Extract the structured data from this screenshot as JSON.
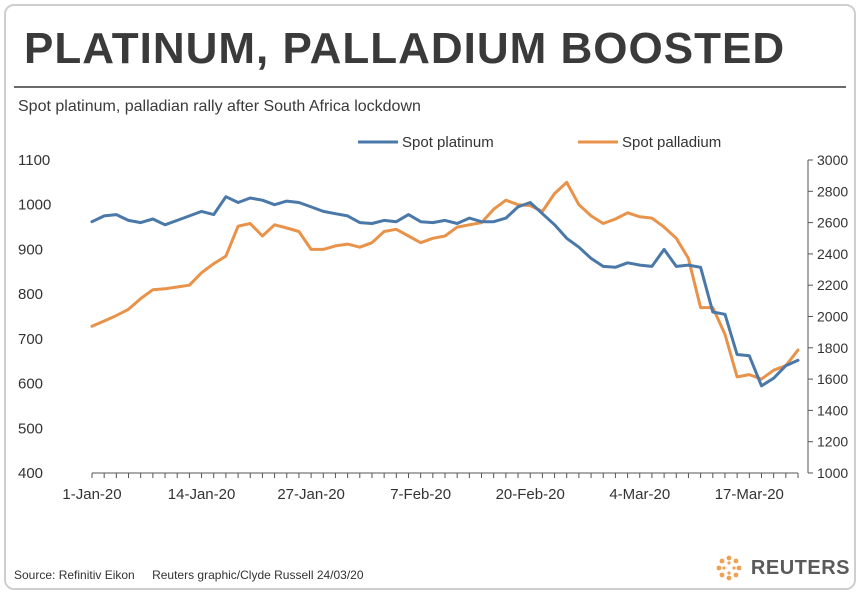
{
  "header": {
    "title": "PLATINUM, PALLADIUM BOOSTED",
    "subtitle": "Spot platinum, palladian rally after South Africa lockdown"
  },
  "footer": {
    "source": "Source: Refinitiv Eikon",
    "credit": "Reuters graphic/Clyde Russell 24/03/20",
    "brand": "REUTERS"
  },
  "colors": {
    "platinum": "#4a78a8",
    "palladium": "#e8924a",
    "brand_orange": "#f0a050"
  },
  "chart_data": {
    "type": "line",
    "x": [
      "1-Jan-20",
      "2-Jan-20",
      "3-Jan-20",
      "6-Jan-20",
      "7-Jan-20",
      "8-Jan-20",
      "9-Jan-20",
      "10-Jan-20",
      "13-Jan-20",
      "14-Jan-20",
      "15-Jan-20",
      "16-Jan-20",
      "17-Jan-20",
      "20-Jan-20",
      "21-Jan-20",
      "22-Jan-20",
      "23-Jan-20",
      "24-Jan-20",
      "27-Jan-20",
      "28-Jan-20",
      "29-Jan-20",
      "30-Jan-20",
      "31-Jan-20",
      "3-Feb-20",
      "4-Feb-20",
      "5-Feb-20",
      "6-Feb-20",
      "7-Feb-20",
      "10-Feb-20",
      "11-Feb-20",
      "12-Feb-20",
      "13-Feb-20",
      "14-Feb-20",
      "17-Feb-20",
      "18-Feb-20",
      "19-Feb-20",
      "20-Feb-20",
      "21-Feb-20",
      "24-Feb-20",
      "25-Feb-20",
      "26-Feb-20",
      "27-Feb-20",
      "28-Feb-20",
      "2-Mar-20",
      "3-Mar-20",
      "4-Mar-20",
      "5-Mar-20",
      "6-Mar-20",
      "9-Mar-20",
      "10-Mar-20",
      "11-Mar-20",
      "12-Mar-20",
      "13-Mar-20",
      "16-Mar-20",
      "17-Mar-20",
      "18-Mar-20",
      "19-Mar-20",
      "20-Mar-20",
      "23-Mar-20"
    ],
    "xtick_labels": [
      "1-Jan-20",
      "14-Jan-20",
      "27-Jan-20",
      "7-Feb-20",
      "20-Feb-20",
      "4-Mar-20",
      "17-Mar-20"
    ],
    "y_left": {
      "ticks": [
        "400",
        "500",
        "600",
        "700",
        "800",
        "900",
        "1000",
        "1100"
      ],
      "ylim": [
        400,
        1100
      ]
    },
    "y_right": {
      "ticks": [
        "1000",
        "1200",
        "1400",
        "1600",
        "1800",
        "2000",
        "2200",
        "2400",
        "2600",
        "2800",
        "3000"
      ],
      "ylim": [
        1000,
        3000
      ]
    },
    "grid": false,
    "legend": "top-center",
    "series": [
      {
        "name": "Spot platinum",
        "axis": "left",
        "values": [
          962,
          975,
          978,
          965,
          960,
          968,
          955,
          965,
          975,
          985,
          978,
          1018,
          1005,
          1015,
          1010,
          1000,
          1008,
          1005,
          995,
          985,
          980,
          975,
          960,
          958,
          965,
          962,
          978,
          962,
          960,
          965,
          958,
          970,
          962,
          962,
          970,
          995,
          1005,
          980,
          955,
          925,
          905,
          880,
          862,
          860,
          870,
          865,
          862,
          900,
          862,
          865,
          860,
          760,
          755,
          665,
          662,
          595,
          612,
          640,
          652
        ],
        "color": "#4a78a8"
      },
      {
        "name": "Spot palladium",
        "axis": "left",
        "values": [
          728,
          740,
          752,
          766,
          790,
          810,
          812,
          816,
          820,
          848,
          868,
          885,
          952,
          958,
          930,
          955,
          948,
          940,
          900,
          900,
          908,
          912,
          905,
          915,
          940,
          945,
          930,
          915,
          925,
          930,
          950,
          955,
          960,
          990,
          1010,
          1000,
          998,
          985,
          1025,
          1050,
          1000,
          975,
          958,
          968,
          982,
          973,
          970,
          950,
          925,
          880,
          770,
          770,
          710,
          615,
          620,
          610,
          630,
          640,
          675
        ]
      }
    ]
  }
}
